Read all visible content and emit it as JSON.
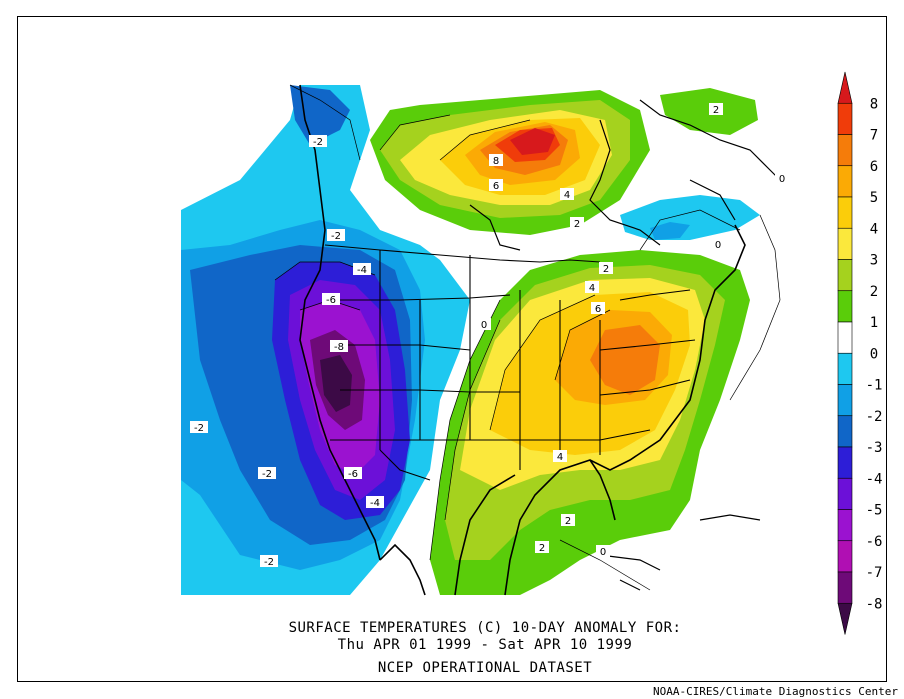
{
  "title_line1": "SURFACE TEMPERATURES (C)   10-DAY ANOMALY FOR:",
  "title_line2": "Thu APR 01 1999 - Sat APR 10 1999",
  "title_line3": "NCEP OPERATIONAL DATASET",
  "credit": "NOAA-CIRES/Climate Diagnostics Center",
  "colorbar": {
    "labels": [
      "8",
      "7",
      "6",
      "5",
      "4",
      "3",
      "2",
      "1",
      "0",
      "-1",
      "-2",
      "-3",
      "-4",
      "-5",
      "-6",
      "-7",
      "-8"
    ],
    "colors": [
      "#d7191c",
      "#f03c0a",
      "#f57c0a",
      "#fbaa05",
      "#fbcd0a",
      "#fbe83c",
      "#a5d21e",
      "#5acd0a",
      "#ffffff",
      "#1ec8f0",
      "#10a0e6",
      "#1066c8",
      "#2d1ed7",
      "#6c10d8",
      "#9b12d0",
      "#b00fb3",
      "#6e0a78",
      "#3c0a46"
    ]
  },
  "contour_labels": [
    "-2",
    "-2",
    "-4",
    "-6",
    "-8",
    "-2",
    "-2",
    "-6",
    "-4",
    "-2",
    "8",
    "6",
    "4",
    "2",
    "2",
    "2",
    "4",
    "6",
    "0",
    "4",
    "2",
    "2",
    "0",
    "0",
    "0"
  ]
}
